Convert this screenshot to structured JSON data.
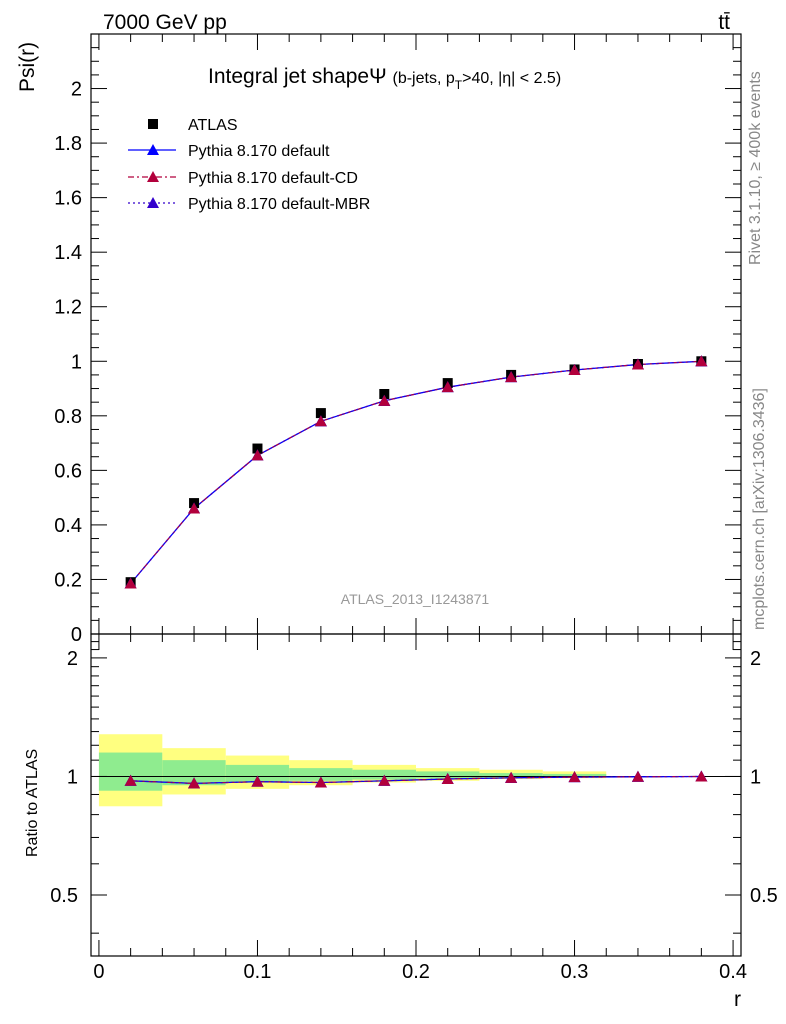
{
  "header": {
    "left": "7000 GeV pp",
    "right": "tt̄"
  },
  "side_text": {
    "rivet": "Rivet 3.1.10, ≥ 400k events",
    "mcplots": "mcplots.cern.ch [arXiv:1306.3436]"
  },
  "chart_data": [
    {
      "type": "scatter",
      "title": "Integral jet shapeΨ (b-jets, p_T>40, |η| < 2.5)",
      "title_main": "Integral jet shapeΨ",
      "title_sub_pre": "(b-jets, p",
      "title_sub_sub": "T",
      "title_sub_post": ">40, |η| < 2.5)",
      "ylabel": "Psi(r)",
      "xlabel": "",
      "xlim": [
        -0.005,
        0.405
      ],
      "ylim": [
        0,
        2.2
      ],
      "yticks": [
        "0",
        "0.2",
        "0.4",
        "0.6",
        "0.8",
        "1",
        "1.2",
        "1.4",
        "1.6",
        "1.8",
        "2"
      ],
      "watermark": "ATLAS_2013_I1243871",
      "legend_position": "top-left",
      "legend": [
        {
          "label": "ATLAS",
          "marker": "square",
          "color": "#000000"
        },
        {
          "label": "Pythia 8.170 default",
          "marker": "triangle",
          "line": "solid",
          "color": "#0000ff"
        },
        {
          "label": "Pythia 8.170 default-CD",
          "marker": "triangle",
          "line": "dashdot",
          "color": "#b2003c"
        },
        {
          "label": "Pythia 8.170 default-MBR",
          "marker": "triangle",
          "line": "dotted",
          "color": "#3300cc"
        }
      ],
      "x": [
        0.02,
        0.06,
        0.1,
        0.14,
        0.18,
        0.22,
        0.26,
        0.3,
        0.34,
        0.38
      ],
      "series": [
        {
          "name": "ATLAS",
          "values": [
            0.19,
            0.48,
            0.68,
            0.81,
            0.88,
            0.92,
            0.95,
            0.97,
            0.99,
            1.0
          ]
        },
        {
          "name": "Pythia 8.170 default",
          "values": [
            0.185,
            0.46,
            0.655,
            0.78,
            0.855,
            0.905,
            0.942,
            0.968,
            0.988,
            1.0
          ]
        },
        {
          "name": "Pythia 8.170 default-CD",
          "values": [
            0.185,
            0.46,
            0.655,
            0.78,
            0.855,
            0.905,
            0.942,
            0.968,
            0.988,
            1.0
          ]
        },
        {
          "name": "Pythia 8.170 default-MBR",
          "values": [
            0.185,
            0.46,
            0.655,
            0.78,
            0.855,
            0.905,
            0.942,
            0.968,
            0.988,
            1.0
          ]
        }
      ]
    },
    {
      "type": "line",
      "ylabel": "Ratio to ATLAS",
      "xlabel": "r",
      "xlim": [
        -0.005,
        0.405
      ],
      "ylim": [
        0.35,
        2.3
      ],
      "yticks": [
        "0.5",
        "1",
        "2"
      ],
      "xticks": [
        "0",
        "0.1",
        "0.2",
        "0.3",
        "0.4"
      ],
      "bands": {
        "bin_edges": [
          0.0,
          0.04,
          0.08,
          0.12,
          0.16,
          0.2,
          0.24,
          0.28,
          0.32
        ],
        "yellow_low": [
          0.84,
          0.9,
          0.93,
          0.95,
          0.965,
          0.975,
          0.985,
          0.99
        ],
        "yellow_high": [
          1.28,
          1.18,
          1.13,
          1.1,
          1.07,
          1.05,
          1.04,
          1.03
        ],
        "green_low": [
          0.92,
          0.95,
          0.965,
          0.975,
          0.982,
          0.988,
          0.992,
          0.995
        ],
        "green_high": [
          1.15,
          1.1,
          1.07,
          1.05,
          1.04,
          1.03,
          1.02,
          1.015
        ],
        "yellow_color": "#ffff80",
        "green_color": "#8fec8f"
      },
      "x": [
        0.02,
        0.06,
        0.1,
        0.14,
        0.18,
        0.22,
        0.26,
        0.3,
        0.34,
        0.38
      ],
      "series": [
        {
          "name": "Pythia 8.170 default",
          "values": [
            0.975,
            0.96,
            0.97,
            0.965,
            0.975,
            0.985,
            0.992,
            0.996,
            0.998,
            1.0
          ]
        },
        {
          "name": "Pythia 8.170 default-CD",
          "values": [
            0.975,
            0.96,
            0.97,
            0.965,
            0.975,
            0.985,
            0.992,
            0.996,
            0.998,
            1.0
          ]
        },
        {
          "name": "Pythia 8.170 default-MBR",
          "values": [
            0.975,
            0.96,
            0.97,
            0.965,
            0.975,
            0.985,
            0.992,
            0.996,
            0.998,
            1.0
          ]
        }
      ]
    }
  ]
}
